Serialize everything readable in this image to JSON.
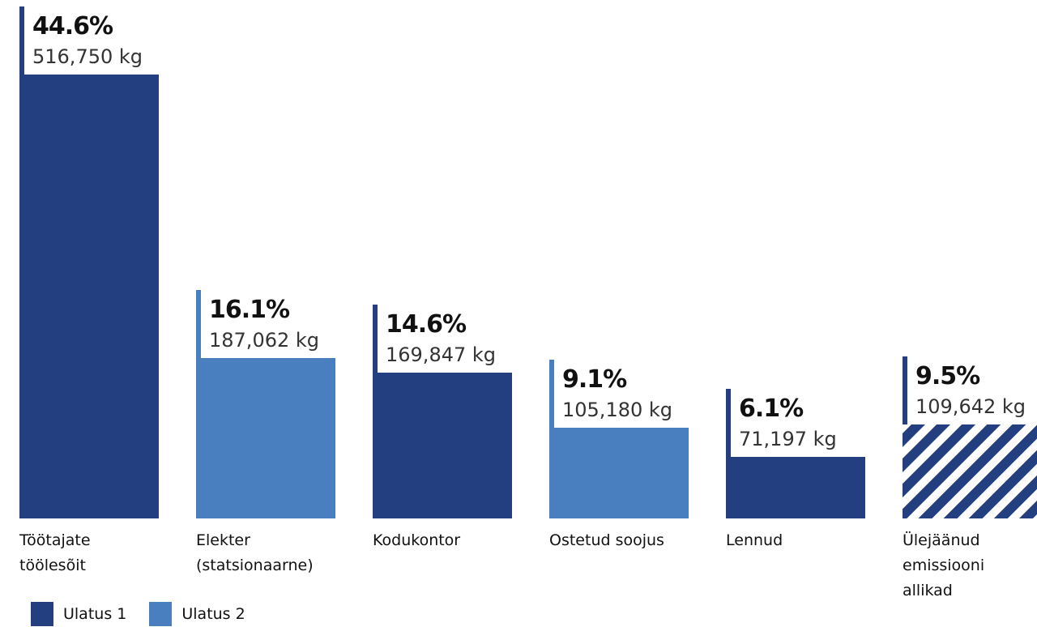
{
  "chart_data": {
    "type": "bar",
    "unit": "kg",
    "categories": [
      "Töötajate\ntöölesõit",
      "Elekter\n(statsionaarne)",
      "Kodukontor",
      "Ostetud soojus",
      "Lennud",
      "Ülejäänud\nemissiooni\nallikad"
    ],
    "values": [
      516750,
      187062,
      169847,
      105180,
      71197,
      109642
    ],
    "percent_labels": [
      "44.6%",
      "16.1%",
      "14.6%",
      "9.1%",
      "6.1%",
      "9.5%"
    ],
    "value_labels": [
      "516,750 kg",
      "187,062 kg",
      "169,847 kg",
      "105,180 kg",
      "71,197 kg",
      "109,642 kg"
    ],
    "bar_group": [
      "Ulatus 1",
      "Ulatus 2",
      "Ulatus 1",
      "Ulatus 2",
      "Ulatus 1",
      "hatched"
    ],
    "colors": {
      "Ulatus 1": "#233f7f",
      "Ulatus 2": "#4a7fbf",
      "hatched": "#233f7f"
    },
    "legend": [
      {
        "label": "Ulatus 1",
        "color": "#233f7f"
      },
      {
        "label": "Ulatus 2",
        "color": "#4a7fbf"
      }
    ],
    "legend_position": "bottom-left",
    "ylim": [
      0,
      516750
    ],
    "grid": false
  }
}
